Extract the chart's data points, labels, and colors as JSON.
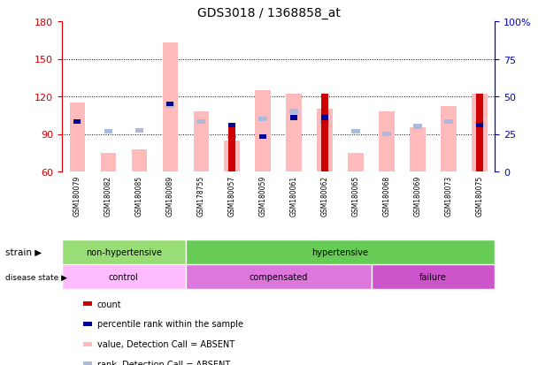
{
  "title": "GDS3018 / 1368858_at",
  "samples": [
    "GSM180079",
    "GSM180082",
    "GSM180085",
    "GSM180089",
    "GSM178755",
    "GSM180057",
    "GSM180059",
    "GSM180061",
    "GSM180062",
    "GSM180065",
    "GSM180068",
    "GSM180069",
    "GSM180073",
    "GSM180075"
  ],
  "value_absent": [
    115,
    75,
    78,
    163,
    108,
    85,
    125,
    122,
    110,
    75,
    108,
    95,
    112,
    122
  ],
  "rank_absent": [
    100,
    92,
    93,
    113,
    100,
    88,
    102,
    108,
    100,
    92,
    90,
    96,
    100,
    98
  ],
  "count": [
    0,
    0,
    0,
    0,
    0,
    97,
    0,
    0,
    122,
    0,
    0,
    0,
    0,
    122
  ],
  "percentile_blue": [
    100,
    0,
    0,
    114,
    0,
    97,
    88,
    103,
    103,
    0,
    0,
    0,
    0,
    97
  ],
  "ylim": [
    60,
    180
  ],
  "y2lim": [
    0,
    100
  ],
  "yticks": [
    60,
    90,
    120,
    150,
    180
  ],
  "y2ticks": [
    0,
    25,
    50,
    75,
    100
  ],
  "strain_groups": [
    {
      "label": "non-hypertensive",
      "start": 0,
      "end": 4,
      "color": "#99dd77"
    },
    {
      "label": "hypertensive",
      "start": 4,
      "end": 14,
      "color": "#66cc55"
    }
  ],
  "disease_groups": [
    {
      "label": "control",
      "start": 0,
      "end": 4,
      "color": "#ffbbff"
    },
    {
      "label": "compensated",
      "start": 4,
      "end": 10,
      "color": "#dd77dd"
    },
    {
      "label": "failure",
      "start": 10,
      "end": 14,
      "color": "#cc55cc"
    }
  ],
  "legend_items": [
    {
      "label": "count",
      "color": "#cc0000"
    },
    {
      "label": "percentile rank within the sample",
      "color": "#000099"
    },
    {
      "label": "value, Detection Call = ABSENT",
      "color": "#ffbbbb"
    },
    {
      "label": "rank, Detection Call = ABSENT",
      "color": "#aabbdd"
    }
  ],
  "left_axis_color": "#cc0000",
  "right_axis_color": "#0000cc",
  "xtick_bg": "#cccccc",
  "plot_bg": "#ffffff"
}
